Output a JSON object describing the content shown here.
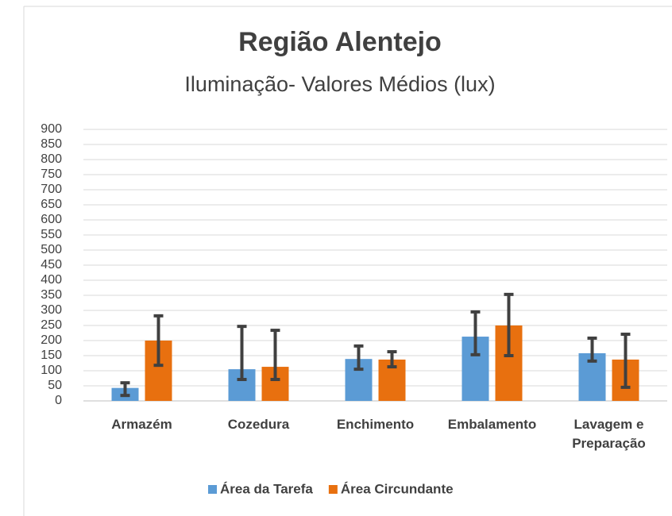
{
  "chart_data": {
    "type": "bar",
    "title": "Região Alentejo",
    "subtitle": "Iluminação- Valores Médios (lux)",
    "categories": [
      "Armazém",
      "Cozedura",
      "Enchimento",
      "Embalamento",
      "Lavagem e Preparação"
    ],
    "series": [
      {
        "name": "Área da Tarefa",
        "color": "#5b9bd5",
        "values": [
          43,
          105,
          139,
          213,
          158
        ],
        "error_minus": [
          25,
          34,
          34,
          60,
          26
        ],
        "error_plus": [
          17,
          142,
          43,
          82,
          50
        ]
      },
      {
        "name": "Área Circundante",
        "color": "#e8700f",
        "values": [
          200,
          113,
          137,
          250,
          137
        ],
        "error_minus": [
          82,
          42,
          24,
          100,
          92
        ],
        "error_plus": [
          82,
          121,
          26,
          103,
          84
        ]
      }
    ],
    "ylim": [
      0,
      900
    ],
    "yticks": [
      0,
      50,
      100,
      150,
      200,
      250,
      300,
      350,
      400,
      450,
      500,
      550,
      600,
      650,
      700,
      750,
      800,
      850,
      900
    ],
    "grid": true,
    "legend": "bottom"
  }
}
